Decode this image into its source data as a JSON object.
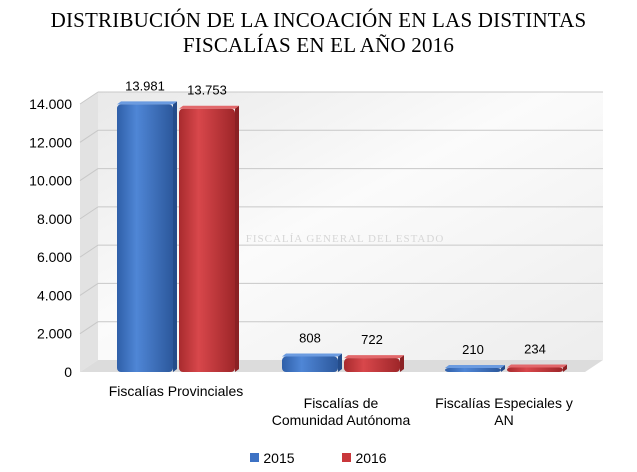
{
  "chart_data": {
    "type": "bar",
    "title_lines": [
      "DISTRIBUCIÓN DE LA INCOACIÓN EN LAS DISTINTAS",
      "FISCALÍAS EN EL AÑO 2016"
    ],
    "categories": [
      "Fiscalías Provinciales",
      "Fiscalías de Comunidad Autónoma",
      "Fiscalías Especiales y AN"
    ],
    "category_label_lines": [
      [
        "Fiscalías Provinciales"
      ],
      [
        "Fiscalías de",
        "Comunidad Autónoma"
      ],
      [
        "Fiscalías Especiales y",
        "AN"
      ]
    ],
    "series": [
      {
        "name": "2015",
        "values": [
          13981,
          808,
          210
        ],
        "labels": [
          "13.981",
          "808",
          "210"
        ],
        "color": "#3d72c4"
      },
      {
        "name": "2016",
        "values": [
          13753,
          722,
          234
        ],
        "labels": [
          "13.753",
          "722",
          "234"
        ],
        "color": "#c9373b"
      }
    ],
    "ylim": [
      0,
      14000
    ],
    "yticks": [
      0,
      2000,
      4000,
      6000,
      8000,
      10000,
      12000,
      14000
    ],
    "ytick_labels": [
      "0",
      "2.000",
      "4.000",
      "6.000",
      "8.000",
      "10.000",
      "12.000",
      "14.000"
    ],
    "grid": true,
    "legend_position": "bottom",
    "watermark_text": "FISCALÍA GENERAL DEL ESTADO"
  }
}
